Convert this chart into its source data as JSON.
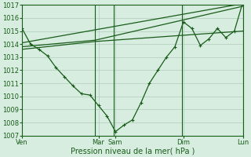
{
  "xlabel": "Pression niveau de la mer( hPa )",
  "bg_color": "#d6ede0",
  "grid_color": "#b0ccb8",
  "line_color": "#1a5c1a",
  "ylim": [
    1007,
    1017
  ],
  "xlim": [
    0,
    13
  ],
  "yticks": [
    1007,
    1008,
    1009,
    1010,
    1011,
    1012,
    1013,
    1014,
    1015,
    1016,
    1017
  ],
  "day_positions": [
    0.0,
    4.5,
    5.5,
    9.5,
    13.0
  ],
  "day_labels": [
    "Ven",
    "Mar",
    "Sam",
    "Dim",
    "Lun"
  ],
  "vline_positions": [
    4.3,
    5.4,
    9.4,
    13.0
  ],
  "line1_x": [
    0.0,
    0.5,
    1.0,
    1.5,
    2.0,
    2.5,
    3.0,
    3.5,
    4.0,
    4.5,
    5.0,
    5.5,
    6.0,
    6.5,
    7.0,
    7.5,
    8.0,
    8.5,
    9.0,
    9.5,
    10.0,
    10.5,
    11.0,
    11.5,
    12.0,
    12.5,
    13.0
  ],
  "line1_y": [
    1015.2,
    1014.0,
    1013.6,
    1013.1,
    1012.2,
    1011.5,
    1010.8,
    1010.2,
    1010.1,
    1009.3,
    1008.5,
    1007.3,
    1007.8,
    1008.2,
    1009.5,
    1011.0,
    1012.0,
    1013.0,
    1013.8,
    1015.7,
    1015.2,
    1013.9,
    1014.4,
    1015.2,
    1014.5,
    1015.0,
    1017.2
  ],
  "line2_x": [
    0.0,
    13.0
  ],
  "line2_y": [
    1014.1,
    1017.1
  ],
  "line3_x": [
    0.0,
    4.3,
    13.0
  ],
  "line3_y": [
    1013.8,
    1014.3,
    1016.9
  ],
  "line4_x": [
    0.0,
    4.3,
    13.0
  ],
  "line4_y": [
    1013.6,
    1014.2,
    1015.0
  ]
}
